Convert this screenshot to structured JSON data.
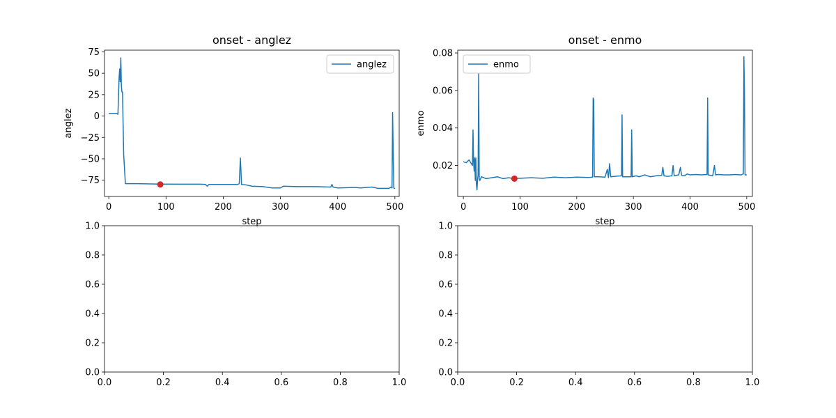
{
  "chart_data": [
    {
      "type": "line",
      "title": "onset - anglez",
      "xlabel": "step",
      "ylabel": "anglez",
      "xlim": [
        -7.5,
        507.5
      ],
      "ylim": [
        -94,
        77
      ],
      "xticks": [
        0,
        100,
        200,
        300,
        400,
        500
      ],
      "yticks": [
        75,
        50,
        25,
        0,
        -25,
        -50,
        -75
      ],
      "tick_labels_x": [
        "0",
        "100",
        "200",
        "300",
        "400",
        "500"
      ],
      "tick_labels_y": [
        "75",
        "50",
        "25",
        "0",
        "−25",
        "−50",
        "−75"
      ],
      "legend": {
        "position": "upper right"
      },
      "series": [
        {
          "name": "anglez",
          "color": "#1f77b4",
          "points": [
            [
              0,
              3
            ],
            [
              8,
              3
            ],
            [
              14,
              3
            ],
            [
              16,
              2
            ],
            [
              18,
              45
            ],
            [
              19,
              55
            ],
            [
              20,
              40
            ],
            [
              21,
              68
            ],
            [
              22,
              35
            ],
            [
              23,
              28
            ],
            [
              24,
              28
            ],
            [
              26,
              -45
            ],
            [
              29,
              -79
            ],
            [
              50,
              -79
            ],
            [
              89,
              -79.5
            ],
            [
              120,
              -79.6
            ],
            [
              160,
              -79.6
            ],
            [
              169,
              -80
            ],
            [
              172,
              -82
            ],
            [
              175,
              -80
            ],
            [
              200,
              -80
            ],
            [
              225,
              -80
            ],
            [
              228,
              -79
            ],
            [
              230,
              -49
            ],
            [
              232,
              -80
            ],
            [
              240,
              -80.5
            ],
            [
              250,
              -82
            ],
            [
              270,
              -82.5
            ],
            [
              285,
              -84
            ],
            [
              300,
              -84
            ],
            [
              305,
              -82
            ],
            [
              330,
              -82.5
            ],
            [
              360,
              -82.5
            ],
            [
              388,
              -83
            ],
            [
              390,
              -80
            ],
            [
              392,
              -83
            ],
            [
              400,
              -84
            ],
            [
              430,
              -83.5
            ],
            [
              440,
              -84
            ],
            [
              460,
              -83
            ],
            [
              470,
              -84.5
            ],
            [
              490,
              -84.5
            ],
            [
              493,
              -83
            ],
            [
              495,
              -84
            ],
            [
              496,
              4
            ],
            [
              497,
              -40
            ],
            [
              498,
              -84
            ],
            [
              500,
              -85
            ]
          ]
        }
      ],
      "markers": [
        {
          "x": 90,
          "y": -80,
          "color": "#d62728"
        }
      ]
    },
    {
      "type": "line",
      "title": "onset - enmo",
      "xlabel": "step",
      "ylabel": "enmo",
      "xlim": [
        -10,
        510
      ],
      "ylim": [
        0.0035,
        0.0815
      ],
      "xticks": [
        0,
        100,
        200,
        300,
        400,
        500
      ],
      "yticks": [
        0.02,
        0.04,
        0.06,
        0.08
      ],
      "tick_labels_x": [
        "0",
        "100",
        "200",
        "300",
        "400",
        "500"
      ],
      "tick_labels_y": [
        "0.02",
        "0.04",
        "0.06",
        "0.08"
      ],
      "legend": {
        "position": "upper left"
      },
      "series": [
        {
          "name": "enmo",
          "color": "#1f77b4",
          "points": [
            [
              0,
              0.022
            ],
            [
              5,
              0.0215
            ],
            [
              10,
              0.023
            ],
            [
              14,
              0.021
            ],
            [
              16,
              0.02
            ],
            [
              17,
              0.039
            ],
            [
              18,
              0.022
            ],
            [
              19,
              0.017
            ],
            [
              20,
              0.024
            ],
            [
              21,
              0.012
            ],
            [
              22,
              0.024
            ],
            [
              23,
              0.01
            ],
            [
              24,
              0.007
            ],
            [
              25,
              0.012
            ],
            [
              26,
              0.015
            ],
            [
              27,
              0.069
            ],
            [
              28,
              0.013
            ],
            [
              29,
              0.012
            ],
            [
              32,
              0.014
            ],
            [
              40,
              0.013
            ],
            [
              50,
              0.0135
            ],
            [
              60,
              0.014
            ],
            [
              70,
              0.013
            ],
            [
              80,
              0.0135
            ],
            [
              89,
              0.013
            ],
            [
              100,
              0.0132
            ],
            [
              120,
              0.0135
            ],
            [
              140,
              0.0132
            ],
            [
              160,
              0.0138
            ],
            [
              180,
              0.0135
            ],
            [
              200,
              0.0138
            ],
            [
              220,
              0.0136
            ],
            [
              228,
              0.0138
            ],
            [
              229,
              0.056
            ],
            [
              230,
              0.055
            ],
            [
              231,
              0.014
            ],
            [
              240,
              0.014
            ],
            [
              250,
              0.0138
            ],
            [
              254,
              0.018
            ],
            [
              256,
              0.0135
            ],
            [
              258,
              0.021
            ],
            [
              260,
              0.014
            ],
            [
              270,
              0.0143
            ],
            [
              279,
              0.0145
            ],
            [
              280,
              0.047
            ],
            [
              281,
              0.014
            ],
            [
              290,
              0.014
            ],
            [
              296,
              0.014
            ],
            [
              297,
              0.039
            ],
            [
              298,
              0.014
            ],
            [
              305,
              0.0145
            ],
            [
              310,
              0.014
            ],
            [
              320,
              0.015
            ],
            [
              330,
              0.014
            ],
            [
              340,
              0.0145
            ],
            [
              350,
              0.0148
            ],
            [
              352,
              0.019
            ],
            [
              354,
              0.0145
            ],
            [
              360,
              0.0142
            ],
            [
              368,
              0.0145
            ],
            [
              370,
              0.02
            ],
            [
              372,
              0.0145
            ],
            [
              380,
              0.015
            ],
            [
              383,
              0.019
            ],
            [
              385,
              0.0148
            ],
            [
              390,
              0.0145
            ],
            [
              395,
              0.0155
            ],
            [
              400,
              0.015
            ],
            [
              410,
              0.0152
            ],
            [
              420,
              0.015
            ],
            [
              430,
              0.0152
            ],
            [
              431,
              0.056
            ],
            [
              432,
              0.015
            ],
            [
              440,
              0.0145
            ],
            [
              443,
              0.02
            ],
            [
              445,
              0.015
            ],
            [
              450,
              0.0152
            ],
            [
              460,
              0.015
            ],
            [
              470,
              0.015
            ],
            [
              480,
              0.0152
            ],
            [
              490,
              0.015
            ],
            [
              494,
              0.0155
            ],
            [
              495,
              0.078
            ],
            [
              496,
              0.06
            ],
            [
              497,
              0.015
            ],
            [
              500,
              0.015
            ]
          ]
        }
      ],
      "markers": [
        {
          "x": 90,
          "y": 0.013,
          "color": "#d62728"
        }
      ]
    },
    {
      "type": "line",
      "title": "",
      "xlabel": "",
      "ylabel": "",
      "xlim": [
        0,
        1
      ],
      "ylim": [
        0,
        1
      ],
      "xticks": [
        0,
        0.2,
        0.4,
        0.6,
        0.8,
        1
      ],
      "yticks": [
        0,
        0.2,
        0.4,
        0.6,
        0.8,
        1
      ],
      "tick_labels_x": [
        "0.0",
        "0.2",
        "0.4",
        "0.6",
        "0.8",
        "1.0"
      ],
      "tick_labels_y": [
        "0.0",
        "0.2",
        "0.4",
        "0.6",
        "0.8",
        "1.0"
      ],
      "series": []
    },
    {
      "type": "line",
      "title": "",
      "xlabel": "",
      "ylabel": "",
      "xlim": [
        0,
        1
      ],
      "ylim": [
        0,
        1
      ],
      "xticks": [
        0,
        0.2,
        0.4,
        0.6,
        0.8,
        1
      ],
      "yticks": [
        0,
        0.2,
        0.4,
        0.6,
        0.8,
        1
      ],
      "tick_labels_x": [
        "0.0",
        "0.2",
        "0.4",
        "0.6",
        "0.8",
        "1.0"
      ],
      "tick_labels_y": [
        "0.0",
        "0.2",
        "0.4",
        "0.6",
        "0.8",
        "1.0"
      ],
      "series": []
    }
  ]
}
